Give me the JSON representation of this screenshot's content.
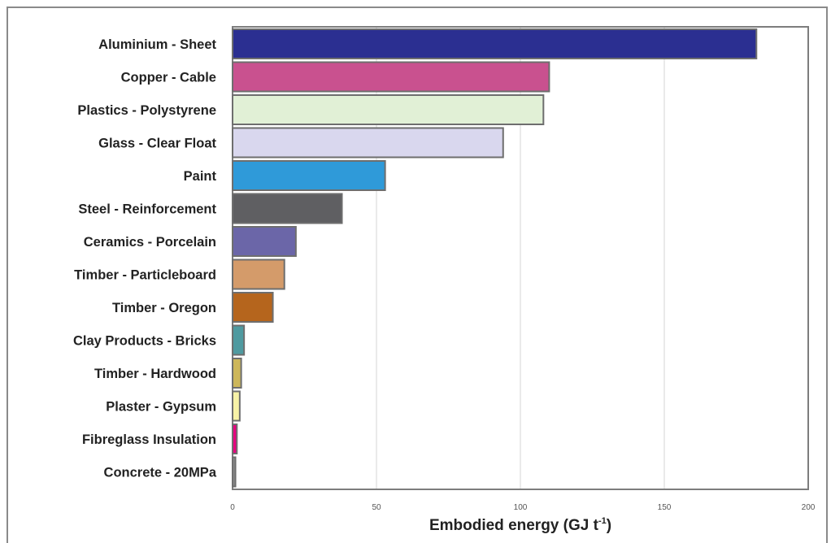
{
  "chart_data": {
    "type": "bar",
    "orientation": "horizontal",
    "categories": [
      "Aluminium - Sheet",
      "Copper - Cable",
      "Plastics - Polystyrene",
      "Glass - Clear Float",
      "Paint",
      "Steel - Reinforcement",
      "Ceramics - Porcelain",
      "Timber - Particleboard",
      "Timber - Oregon",
      "Clay Products - Bricks",
      "Timber - Hardwood",
      "Plaster - Gypsum",
      "Fibreglass Insulation",
      "Concrete - 20MPa"
    ],
    "values": [
      182,
      110,
      108,
      94,
      53,
      38,
      22,
      18,
      14,
      4,
      3,
      2.5,
      1.5,
      1
    ],
    "colors": [
      "#2b2f91",
      "#c9518f",
      "#e1f0d6",
      "#d9d7ee",
      "#2f9ad9",
      "#5f5f62",
      "#6b66a8",
      "#d49b6a",
      "#b5651d",
      "#4f9aa0",
      "#cdb75a",
      "#f7f2a6",
      "#e5007e",
      "#8a8a8a"
    ],
    "title": "",
    "xlabel_main": "Embodied energy (GJ t",
    "xlabel_sup": "-1",
    "xlabel_close": ")",
    "ylabel": "",
    "xlim": [
      0,
      200
    ],
    "xticks": [
      0,
      50,
      100,
      150,
      200
    ],
    "grid": true
  }
}
